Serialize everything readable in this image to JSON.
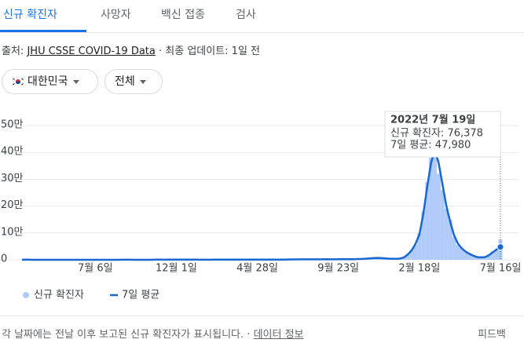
{
  "tabs": [
    "신규 확진자",
    "사망자",
    "백신 접종",
    "검사"
  ],
  "source": {
    "prefix": "출처:",
    "link": "JHU CSSE COVID-19 Data",
    "updated": "· 최종 업데이트: 1일 전"
  },
  "filters": [
    "대한민국",
    "전체"
  ],
  "chart_data": {
    "type": "combo",
    "categories": [
      null,
      null,
      null,
      null,
      null,
      null,
      null,
      null,
      null,
      null,
      null,
      null,
      null,
      null,
      null,
      null,
      null,
      null,
      null,
      "7월 6일",
      null,
      null,
      null,
      null,
      null,
      null,
      null,
      null,
      null,
      null,
      null,
      null,
      null,
      null,
      null,
      null,
      null,
      null,
      null,
      null,
      "12월 1일",
      null,
      null,
      null,
      null,
      null,
      null,
      null,
      null,
      null,
      null,
      null,
      null,
      null,
      null,
      null,
      null,
      null,
      null,
      null,
      null,
      "4월 28일",
      null,
      null,
      null,
      null,
      null,
      null,
      null,
      null,
      null,
      null,
      null,
      null,
      null,
      null,
      null,
      null,
      null,
      null,
      null,
      null,
      "9월 23일",
      null,
      null,
      null,
      null,
      null,
      null,
      null,
      null,
      null,
      null,
      null,
      null,
      null,
      null,
      null,
      null,
      null,
      null,
      null,
      null,
      "2월 18일",
      null,
      null,
      null,
      null,
      null,
      null,
      null,
      null,
      null,
      null,
      null,
      null,
      null,
      null,
      null,
      null,
      null,
      null,
      null,
      null,
      "7월 16일"
    ],
    "series": [
      {
        "name": "신규 확진자",
        "type": "bar",
        "color": "#aecbfa",
        "values": [
          400,
          700,
          150,
          90,
          100,
          40,
          30,
          20,
          50,
          30,
          50,
          30,
          40,
          60,
          40,
          70,
          50,
          40,
          60,
          50,
          70,
          50,
          40,
          60,
          50,
          40,
          250,
          350,
          180,
          110,
          90,
          110,
          120,
          110,
          350,
          580,
          500,
          380,
          680,
          1050,
          950,
          780,
          650,
          520,
          640,
          450,
          420,
          380,
          430,
          390,
          480,
          420,
          520,
          620,
          680,
          740,
          560,
          520,
          580,
          640,
          680,
          720,
          690,
          640,
          580,
          520,
          640,
          730,
          1150,
          1400,
          1550,
          1650,
          1750,
          1850,
          1750,
          1650,
          1800,
          1850,
          1950,
          2100,
          1750,
          2000,
          3200,
          2600,
          2100,
          1900,
          2500,
          3100,
          3300,
          4200,
          5300,
          6300,
          7500,
          6200,
          5200,
          4300,
          3900,
          3600,
          5500,
          10000,
          22000,
          38000,
          56000,
          100000,
          180000,
          290000,
          380000,
          456000,
          320000,
          260000,
          190000,
          150000,
          85000,
          55000,
          45000,
          28000,
          24000,
          14000,
          11000,
          8000,
          12000,
          20000,
          30000,
          41000,
          76378
        ]
      },
      {
        "name": "7일 평균",
        "type": "line",
        "color": "#1967d2",
        "values": [
          300,
          600,
          200,
          100,
          80,
          50,
          30,
          30,
          40,
          40,
          40,
          40,
          40,
          50,
          50,
          60,
          50,
          50,
          60,
          60,
          60,
          60,
          50,
          50,
          50,
          50,
          200,
          300,
          200,
          120,
          100,
          100,
          100,
          120,
          300,
          500,
          550,
          400,
          600,
          1000,
          1000,
          800,
          700,
          500,
          600,
          500,
          400,
          400,
          400,
          400,
          450,
          450,
          500,
          600,
          650,
          700,
          600,
          550,
          550,
          600,
          650,
          700,
          700,
          650,
          600,
          550,
          600,
          700,
          1000,
          1300,
          1500,
          1600,
          1700,
          1800,
          1800,
          1700,
          1700,
          1800,
          1900,
          2000,
          1800,
          1900,
          2400,
          2700,
          2200,
          2000,
          2400,
          3000,
          3200,
          4000,
          5000,
          6000,
          7000,
          6500,
          5500,
          4500,
          4000,
          3500,
          5000,
          9000,
          20000,
          35000,
          60000,
          95000,
          170000,
          270000,
          360000,
          410000,
          360000,
          280000,
          200000,
          140000,
          90000,
          60000,
          42000,
          30000,
          22000,
          15000,
          10000,
          9000,
          10000,
          17000,
          28000,
          38000,
          47980
        ]
      }
    ],
    "ylim": [
      0,
      500000
    ],
    "yticks": [
      0,
      {
        "value": 100000,
        "label": "10만"
      },
      {
        "value": 200000,
        "label": "20만"
      },
      {
        "value": 300000,
        "label": "30만"
      },
      {
        "value": 400000,
        "label": "40만"
      },
      {
        "value": 500000,
        "label": "50만"
      }
    ],
    "grid": true,
    "tooltip": {
      "title": "2022년 7월 19일",
      "rows": [
        "신규 확진자: 76,378",
        "7일 평균: 47,980"
      ]
    }
  },
  "footer": {
    "note": "각 날짜에는 전날 이후 보고된 신규 확진자가 표시됩니다.",
    "sep": "·",
    "link": "데이터 정보",
    "feedback": "피드백"
  }
}
